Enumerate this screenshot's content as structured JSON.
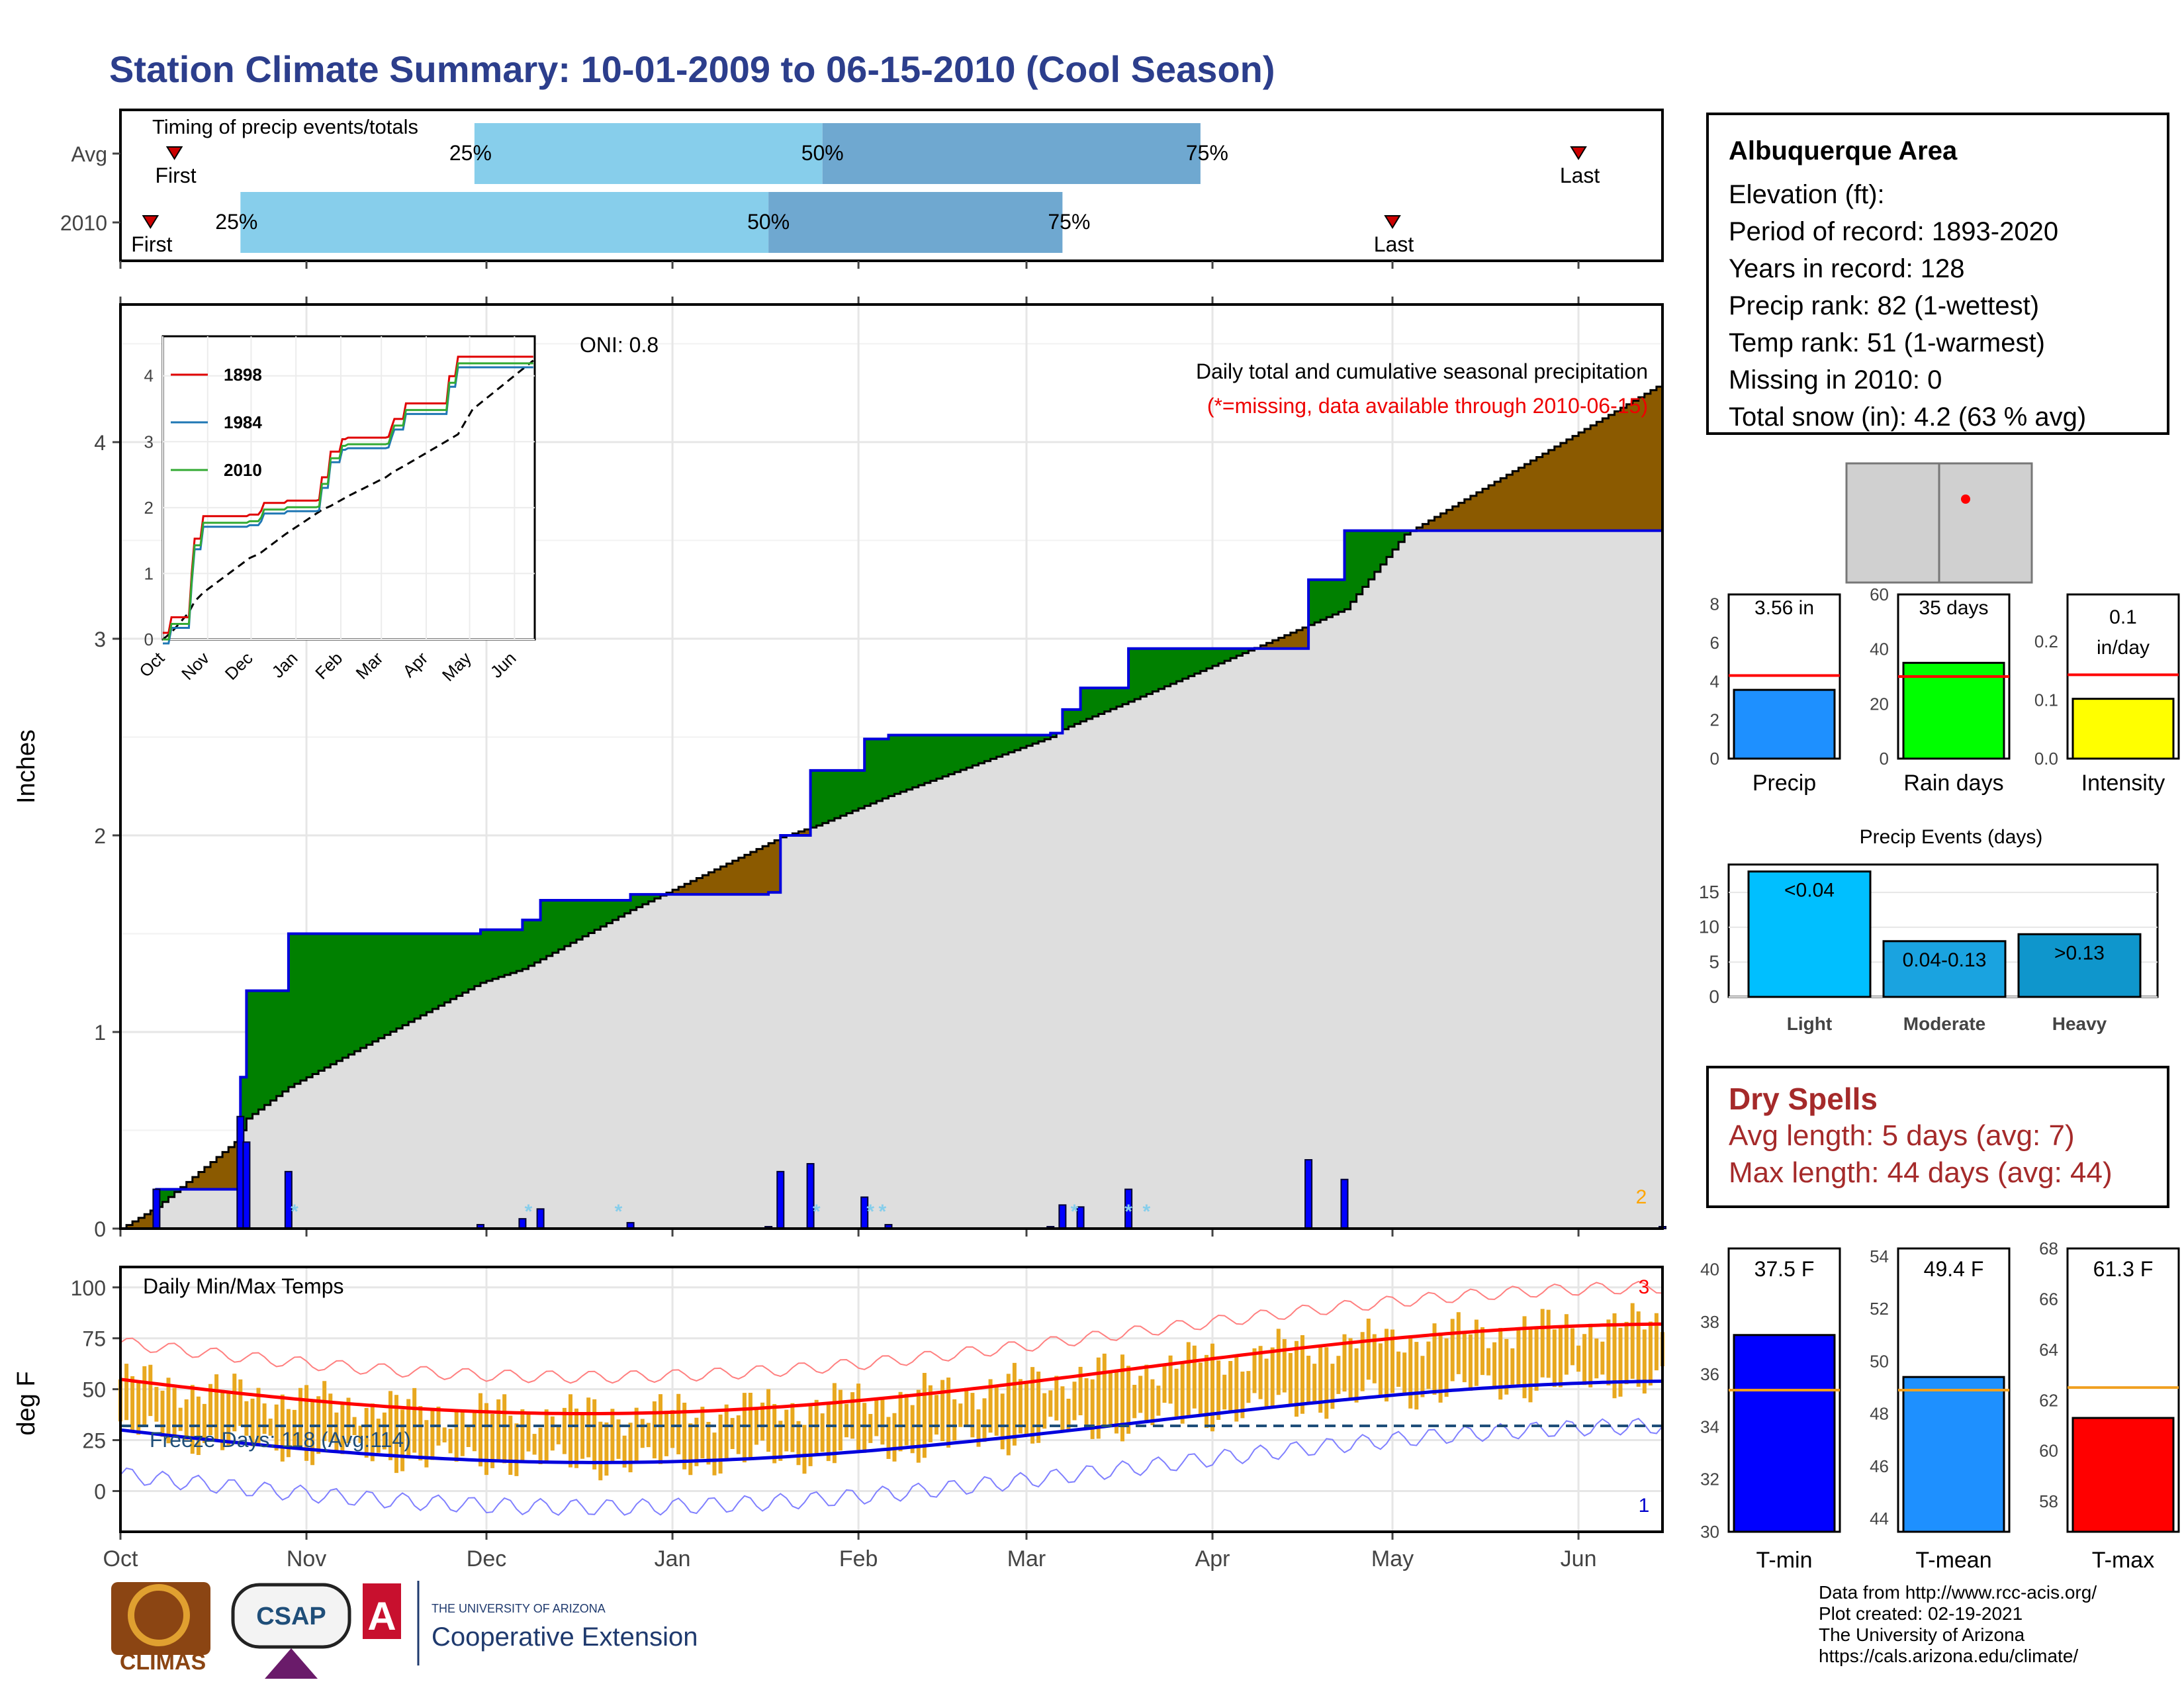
{
  "title": "Station Climate Summary: 10-01-2009 to 06-15-2010 (Cool Season)",
  "timing": {
    "label": "Timing of precip events/totals",
    "rows": [
      {
        "name": "Avg",
        "first": "2009-10-10",
        "p25": "2009-11-29",
        "p50": "2010-01-26",
        "p75": "2010-03-30",
        "last": "2010-06-01"
      },
      {
        "name": "2010",
        "first": "2009-10-06",
        "p25": "2009-10-21",
        "p50": "2010-01-17",
        "p75": "2010-03-07",
        "last": "2010-05-01"
      }
    ],
    "first_label": "First",
    "last_label": "Last",
    "p25_label": "25%",
    "p50_label": "50%",
    "p75_label": "75%"
  },
  "main": {
    "ylabel": "Inches",
    "oni": "ONI: 0.8",
    "caption": "Daily total and cumulative seasonal precipitation",
    "caption_missing": "(*=missing, data available through 2010-06-15)",
    "corner_count": "2",
    "yticks": [
      0,
      1,
      2,
      3,
      4
    ],
    "month_ticks": [
      "Oct",
      "Nov",
      "Dec",
      "Jan",
      "Feb",
      "Mar",
      "Apr",
      "May",
      "Jun"
    ]
  },
  "inset": {
    "legend": [
      "1898",
      "1984",
      "2010"
    ],
    "yticks": [
      "0",
      "1",
      "2",
      "3",
      "4"
    ],
    "xticks": [
      "Oct",
      "Nov",
      "Dec",
      "Jan",
      "Feb",
      "Mar",
      "Apr",
      "May",
      "Jun"
    ]
  },
  "temps": {
    "label": "Daily Min/Max Temps",
    "ylabel": "deg F",
    "freeze": "Freeze Days: 118 (Avg:114)",
    "yticks": [
      "0",
      "25",
      "50",
      "75",
      "100"
    ],
    "xticks": [
      "Oct",
      "Nov",
      "Dec",
      "Jan",
      "Feb",
      "Mar",
      "Apr",
      "May",
      "Jun"
    ],
    "count_high": "3",
    "count_low": "1"
  },
  "station": {
    "name": "Albuquerque Area",
    "lines": [
      "Elevation (ft):",
      "Period of record: 1893-2020",
      "Years in record: 128",
      "Precip rank: 82 (1-wettest)",
      "Temp rank: 51 (1-warmest)",
      "Missing in 2010: 0",
      "Total snow (in): 4.2 (63 % avg)"
    ]
  },
  "mini_precip": [
    {
      "name": "Precip",
      "value_label": "3.56 in",
      "value": 3.56,
      "avg": 4.3,
      "ymax": 8.5,
      "ticks": [
        "0",
        "2",
        "4",
        "6",
        "8"
      ],
      "color": "#1e90ff"
    },
    {
      "name": "Rain days",
      "value_label": "35 days",
      "value": 35,
      "avg": 30,
      "ymax": 60,
      "ticks": [
        "0",
        "20",
        "40",
        "60"
      ],
      "color": "#00ff00"
    },
    {
      "name": "Intensity",
      "value_label": "0.1 in/day",
      "value": 0.102,
      "avg": 0.143,
      "ymax": 0.28,
      "ticks": [
        "0.0",
        "0.1",
        "0.2"
      ],
      "color": "#ffff00"
    }
  ],
  "events": {
    "title": "Precip Events (days)",
    "bars": [
      {
        "name": "Light",
        "label": "<0.04",
        "value": 18
      },
      {
        "name": "Moderate",
        "label": "0.04-0.13",
        "value": 8
      },
      {
        "name": "Heavy",
        "label": ">0.13",
        "value": 9
      }
    ],
    "ticks": [
      "0",
      "5",
      "10",
      "15"
    ]
  },
  "dry": {
    "title": "Dry Spells",
    "avg": "Avg length: 5 days (avg: 7)",
    "max": "Max length: 44 days (avg: 44)"
  },
  "mini_temp": [
    {
      "name": "T-min",
      "value_label": "37.5 F",
      "value": 37.5,
      "avg": 35.4,
      "ymin": 30,
      "ymax": 40.8,
      "ticks": [
        "30",
        "32",
        "34",
        "36",
        "38",
        "40"
      ],
      "color": "#0000ff"
    },
    {
      "name": "T-mean",
      "value_label": "49.4 F",
      "value": 49.4,
      "avg": 48.9,
      "ymin": 43.5,
      "ymax": 54.3,
      "ticks": [
        "44",
        "46",
        "48",
        "50",
        "52",
        "54"
      ],
      "color": "#1e90ff"
    },
    {
      "name": "T-max",
      "value_label": "61.3 F",
      "value": 61.3,
      "avg": 62.5,
      "ymin": 56.8,
      "ymax": 68,
      "ticks": [
        "58",
        "60",
        "62",
        "64",
        "66",
        "68"
      ],
      "color": "#ff0000"
    }
  ],
  "credits": [
    "Data from http://www.rcc-acis.org/",
    "Plot created: 02-19-2021",
    "The University of Arizona",
    "https://cals.arizona.edu/climate/"
  ],
  "logos": {
    "climas": "CLIMAS",
    "csap": "CSAP",
    "ua_small": "THE UNIVERSITY OF ARIZONA",
    "ua_big": "Cooperative Extension"
  },
  "chart_data": {
    "type": "area",
    "title": "Daily total and cumulative seasonal precipitation",
    "ylabel": "Inches",
    "ylim": [
      0,
      4.7
    ],
    "x": [
      "2009-10-01",
      "2009-10-07",
      "2009-10-20",
      "2009-10-21",
      "2009-10-22",
      "2009-10-29",
      "2009-11-30",
      "2009-12-07",
      "2009-12-10",
      "2009-12-25",
      "2010-01-17",
      "2010-01-19",
      "2010-01-24",
      "2010-01-25",
      "2010-02-02",
      "2010-02-06",
      "2010-03-05",
      "2010-03-07",
      "2010-03-10",
      "2010-03-18",
      "2010-04-17",
      "2010-04-23",
      "2010-05-03",
      "2010-06-15"
    ],
    "series": [
      {
        "name": "2010",
        "values": [
          0,
          0.2,
          0.2,
          0.77,
          1.21,
          1.5,
          1.52,
          1.57,
          1.67,
          1.7,
          1.71,
          2.0,
          2.33,
          2.33,
          2.49,
          2.51,
          2.52,
          2.64,
          2.75,
          2.95,
          3.3,
          3.55,
          3.55,
          3.56
        ]
      },
      {
        "name": "Avg",
        "values": [
          0,
          0.11,
          0.44,
          0.5,
          0.56,
          0.72,
          1.25,
          1.32,
          1.37,
          1.62,
          1.96,
          1.99,
          2.04,
          2.05,
          2.15,
          2.2,
          2.5,
          2.54,
          2.58,
          2.68,
          3.07,
          3.15,
          3.53,
          4.3
        ]
      }
    ]
  }
}
